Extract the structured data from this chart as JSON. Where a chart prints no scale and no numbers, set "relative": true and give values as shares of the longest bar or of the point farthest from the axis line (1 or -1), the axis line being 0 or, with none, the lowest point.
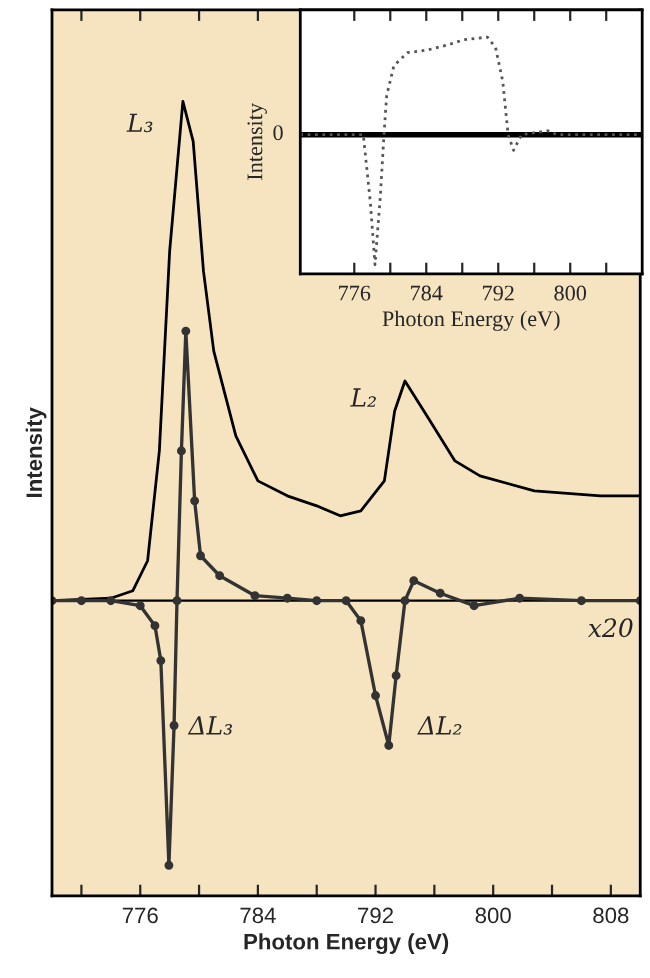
{
  "chart_data": [
    {
      "type": "line",
      "relative": true,
      "xlabel": "Photon Energy (eV)",
      "ylabel": "Intensity",
      "xlim": [
        770,
        810
      ],
      "xticks": [
        {
          "value": 772,
          "label": null
        },
        776,
        {
          "value": 780,
          "label": null
        },
        784,
        {
          "value": 788,
          "label": null
        },
        792,
        {
          "value": 796,
          "label": null
        },
        800,
        {
          "value": 804,
          "label": null
        },
        808
      ],
      "tick_labels": "x",
      "grid": false,
      "legend": false,
      "ref_lines": [
        {
          "axis": "y",
          "value": 0,
          "color": "#000000"
        }
      ],
      "series": [
        {
          "color": "#000000",
          "marker": "none",
          "line_style": "solid",
          "x": [
            770,
            774,
            775.5,
            776.5,
            777.3,
            778,
            778.9,
            779.6,
            780.3,
            781,
            782.5,
            784,
            786,
            788,
            789.6,
            791,
            792.6,
            793.3,
            794,
            795.5,
            797.4,
            799.1,
            802.8,
            807.3,
            810
          ],
          "values": [
            0,
            0.005,
            0.02,
            0.08,
            0.3,
            0.7,
            1.0,
            0.92,
            0.66,
            0.5,
            0.33,
            0.24,
            0.21,
            0.19,
            0.17,
            0.18,
            0.24,
            0.38,
            0.44,
            0.37,
            0.28,
            0.25,
            0.22,
            0.21,
            0.21
          ]
        },
        {
          "color": "#333333",
          "marker": "circle",
          "line_style": "solid",
          "x": [
            770,
            772,
            774,
            776,
            777,
            777.4,
            777.95,
            778.3,
            778.5,
            778.8,
            779.1,
            779.7,
            780.1,
            781.4,
            783.8,
            786,
            788,
            790,
            791,
            792,
            792.9,
            793.4,
            794,
            794.6,
            796.4,
            798.7,
            801.8,
            806,
            810
          ],
          "values": [
            0,
            0,
            0,
            -0.01,
            -0.05,
            -0.12,
            -0.53,
            -0.25,
            0,
            0.3,
            0.54,
            0.2,
            0.09,
            0.05,
            0.01,
            0.005,
            0,
            0,
            -0.04,
            -0.19,
            -0.29,
            -0.15,
            0,
            0.04,
            0.015,
            -0.01,
            0.005,
            0,
            0
          ]
        }
      ],
      "annotations": [
        "L₃",
        "L₂",
        "ΔL₃",
        "ΔL₂",
        "x20"
      ]
    },
    {
      "type": "line",
      "relative": true,
      "xlabel": "Photon Energy (eV)",
      "ylabel": "Intensity",
      "xlim": [
        770,
        808
      ],
      "xticks": [
        776,
        {
          "value": 780,
          "label": null
        },
        784,
        {
          "value": 788,
          "label": null
        },
        792,
        {
          "value": 796,
          "label": null
        },
        800,
        {
          "value": 804,
          "label": null
        }
      ],
      "grid": false,
      "legend": false,
      "ref_lines": [
        {
          "axis": "y",
          "value": 0,
          "label": "0",
          "color": "#000000"
        }
      ],
      "series": [
        {
          "color": "#555555",
          "marker": "none",
          "line_style": "dotted",
          "x": [
            770,
            774,
            777,
            777.8,
            778.3,
            778.9,
            779.3,
            779.6,
            780.4,
            781.9,
            784.1,
            786.4,
            788.2,
            790.8,
            791.7,
            792.5,
            793.1,
            793.7,
            794.6,
            797.5,
            798.5,
            808
          ],
          "values": [
            0,
            0,
            0,
            -0.53,
            -1.0,
            -0.47,
            0,
            0.3,
            0.53,
            0.63,
            0.65,
            0.69,
            0.73,
            0.75,
            0.67,
            0.41,
            0,
            -0.12,
            0,
            0.03,
            0,
            0
          ]
        }
      ]
    }
  ]
}
